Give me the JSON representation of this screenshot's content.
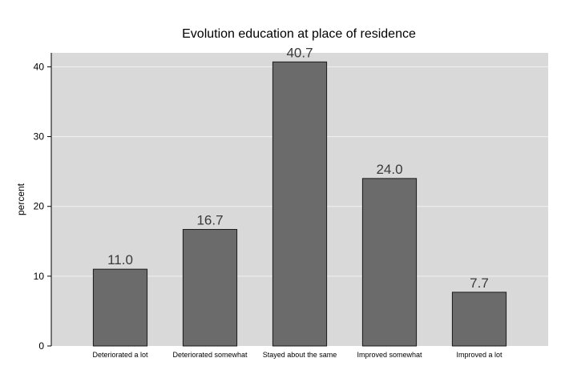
{
  "chart_data": {
    "type": "bar",
    "title": "Evolution education at place of residence",
    "xlabel": "",
    "ylabel": "percent",
    "categories": [
      "Deteriorated a lot",
      "Deteriorated somewhat",
      "Stayed about the same",
      "Improved somewhat",
      "Improved a lot"
    ],
    "values": [
      11.0,
      16.7,
      40.7,
      24.0,
      7.7
    ],
    "value_labels": [
      "11.0",
      "16.7",
      "40.7",
      "24.0",
      "7.7"
    ],
    "ylim": [
      0,
      42
    ],
    "yticks": [
      0,
      10,
      20,
      30,
      40
    ],
    "grid": true,
    "legend": "none",
    "colors": {
      "bar_fill": "#6b6b6b",
      "bar_stroke": "#1a1a1a",
      "plot_background": "#d9d9d9",
      "gridline": "#f2f2f2"
    }
  }
}
